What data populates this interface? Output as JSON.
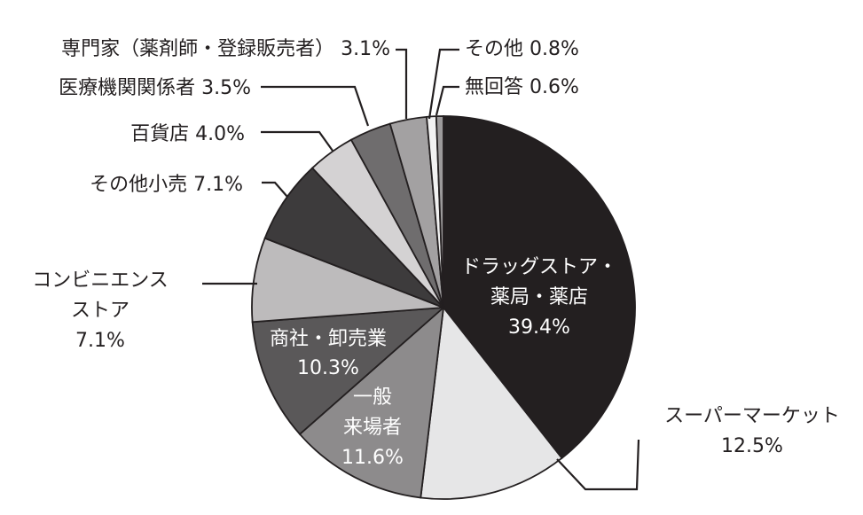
{
  "chart_data": {
    "type": "pie",
    "start": "12 o'clock",
    "direction": "clockwise",
    "slices": [
      {
        "label": "ドラッグストア・薬局・薬店",
        "value": 39.4,
        "value_label": "39.4%",
        "color": "#231f20",
        "text_lines": [
          "ドラッグストア・",
          "薬局・薬店",
          "39.4%"
        ]
      },
      {
        "label": "スーパーマーケット",
        "value": 12.5,
        "value_label": "12.5%",
        "color": "#e6e6e7",
        "text_lines": [
          "スーパーマーケット",
          "12.5%"
        ]
      },
      {
        "label": "一般来場者",
        "value": 11.6,
        "value_label": "11.6%",
        "color": "#8d8b8c",
        "text_lines": [
          "一般",
          "来場者",
          "11.6%"
        ]
      },
      {
        "label": "商社・卸売業",
        "value": 10.3,
        "value_label": "10.3%",
        "color": "#5a5859",
        "text_lines": [
          "商社・卸売業",
          "10.3%"
        ]
      },
      {
        "label": "コンビニエンスストア",
        "value": 7.1,
        "value_label": "7.1%",
        "color": "#bdbbbc",
        "text_lines": [
          "コンビニエンス",
          "ストア",
          "7.1%"
        ]
      },
      {
        "label": "その他小売",
        "value": 7.1,
        "value_label": "7.1%",
        "color": "#3d3b3c",
        "text_lines": [
          "その他小売 7.1%"
        ]
      },
      {
        "label": "百貨店",
        "value": 4.0,
        "value_label": "4.0%",
        "color": "#d4d2d3",
        "text_lines": [
          "百貨店 4.0%"
        ]
      },
      {
        "label": "医療機関関係者",
        "value": 3.5,
        "value_label": "3.5%",
        "color": "#6f6d6e",
        "text_lines": [
          "医療機関関係者 3.5%"
        ]
      },
      {
        "label": "専門家（薬剤師・登録販売者）",
        "value": 3.1,
        "value_label": "3.1%",
        "color": "#a3a1a2",
        "text_lines": [
          "専門家（薬剤師・登録販売者） 3.1%"
        ]
      },
      {
        "label": "その他",
        "value": 0.8,
        "value_label": "0.8%",
        "color": "#f2f2f2",
        "text_lines": [
          "その他 0.8%"
        ]
      },
      {
        "label": "無回答",
        "value": 0.6,
        "value_label": "0.6%",
        "color": "#9c9a9b",
        "text_lines": [
          "無回答 0.6%"
        ]
      }
    ]
  }
}
